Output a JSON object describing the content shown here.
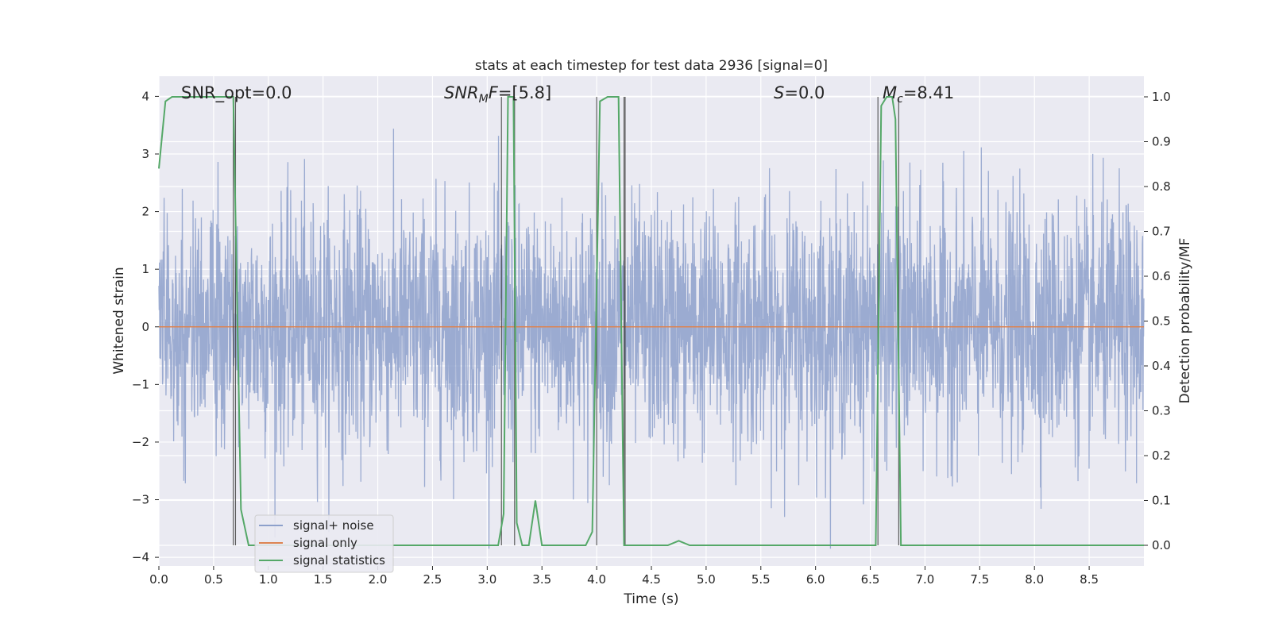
{
  "chart_data": {
    "type": "line",
    "title": "stats at each timestep for test data 2936 [signal=0]",
    "xlabel": "Time (s)",
    "ylabel_left": "Whitened strain",
    "ylabel_right": "Detection probability/MF",
    "xlim": [
      0.0,
      9.0
    ],
    "ylim_left": [
      -4.15,
      4.35
    ],
    "ylim_right": [
      -0.046,
      1.046
    ],
    "x_ticks": [
      "0.0",
      "0.5",
      "1.0",
      "1.5",
      "2.0",
      "2.5",
      "3.0",
      "3.5",
      "4.0",
      "4.5",
      "5.0",
      "5.5",
      "6.0",
      "6.5",
      "7.0",
      "7.5",
      "8.0",
      "8.5"
    ],
    "y_ticks_left": [
      "−4",
      "−3",
      "−2",
      "−1",
      "0",
      "1",
      "2",
      "3",
      "4"
    ],
    "y_ticks_right": [
      "0.0",
      "0.1",
      "0.2",
      "0.3",
      "0.4",
      "0.5",
      "0.6",
      "0.7",
      "0.8",
      "0.9",
      "1.0"
    ],
    "grid": true,
    "legend_position": "lower-left",
    "colors": {
      "background": "#eaeaf2",
      "grid": "#ffffff",
      "noise": "#8da0cb",
      "signal": "#dd8452",
      "stats": "#55a868",
      "markers": "#3a3a3a"
    },
    "annotations": [
      {
        "text": "SNR_opt=0.0"
      },
      {
        "text": "SNR_MF=[5.8]"
      },
      {
        "text": "S=0.0"
      },
      {
        "text": "M_c=8.41"
      }
    ],
    "series": [
      {
        "name": "signal+ noise",
        "axis": "left",
        "description_values": "whitened noise, roughly gaussian, sigma ~1, range about -3.8 to 3.5"
      },
      {
        "name": "signal only",
        "axis": "left",
        "x": [
          0.0,
          9.0
        ],
        "y": [
          0.0,
          0.0
        ]
      },
      {
        "name": "signal statistics",
        "axis": "right",
        "x": [
          0.0,
          0.06,
          0.12,
          0.2,
          0.3,
          0.4,
          0.5,
          0.6,
          0.68,
          0.75,
          0.82,
          0.9,
          1.5,
          2.0,
          2.5,
          3.0,
          3.1,
          3.15,
          3.19,
          3.24,
          3.27,
          3.32,
          3.38,
          3.44,
          3.5,
          3.55,
          3.62,
          3.7,
          3.8,
          3.9,
          3.96,
          4.03,
          4.1,
          4.15,
          4.2,
          4.25,
          4.3,
          4.38,
          4.5,
          4.65,
          4.75,
          4.85,
          5.0,
          5.5,
          6.0,
          6.4,
          6.55,
          6.6,
          6.65,
          6.7,
          6.73,
          6.78,
          6.85,
          7.0,
          8.0,
          9.0
        ],
        "y": [
          0.84,
          0.99,
          1.0,
          1.0,
          1.0,
          1.0,
          1.0,
          1.0,
          1.0,
          0.08,
          0.0,
          0.0,
          0.0,
          0.0,
          0.0,
          0.0,
          0.0,
          0.07,
          1.0,
          1.0,
          0.05,
          0.0,
          0.0,
          0.1,
          0.0,
          0.0,
          0.0,
          0.0,
          0.0,
          0.0,
          0.03,
          0.99,
          1.0,
          1.0,
          1.0,
          0.0,
          0.0,
          0.0,
          0.0,
          0.0,
          0.01,
          0.0,
          0.0,
          0.0,
          0.0,
          0.0,
          0.0,
          0.98,
          1.0,
          1.0,
          0.95,
          0.0,
          0.0,
          0.0,
          0.0,
          0.0
        ]
      }
    ],
    "markers_x": [
      0.68,
      0.7,
      3.13,
      3.25,
      4.0,
      4.25,
      4.26,
      6.57,
      6.76
    ]
  }
}
